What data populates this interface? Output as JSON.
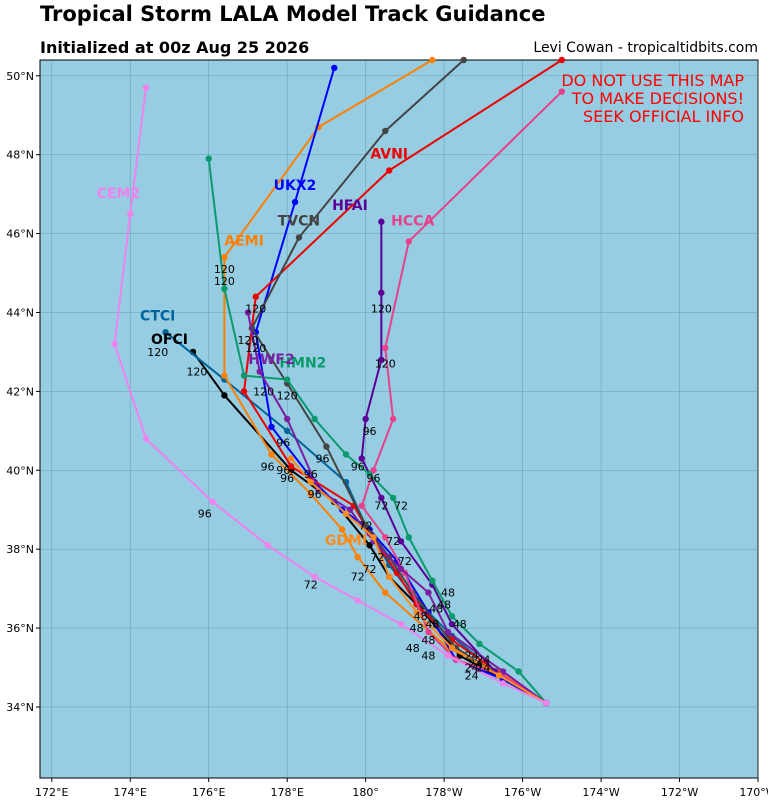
{
  "header": {
    "title": "Tropical Storm LALA Model Track Guidance",
    "subtitle": "Initialized at 00z Aug 25 2026",
    "credit": "Levi Cowan - tropicaltidbits.com"
  },
  "warning": {
    "line1": "DO NOT USE THIS MAP",
    "line2": "TO MAKE DECISIONS!",
    "line3": "SEEK OFFICIAL INFO"
  },
  "axes": {
    "x_ticks": [
      "172°E",
      "174°E",
      "176°E",
      "178°E",
      "180°",
      "178°W",
      "176°W",
      "174°W",
      "172°W",
      "170°W"
    ],
    "y_ticks": [
      "34°N",
      "36°N",
      "38°N",
      "40°N",
      "42°N",
      "44°N",
      "46°N",
      "48°N",
      "50°N"
    ]
  },
  "colors": {
    "ocean": "#96cde3",
    "grid": "#4a7f8f"
  },
  "chart_data": {
    "type": "map",
    "lon_range": [
      171.7,
      190.0
    ],
    "lat_range": [
      32.2,
      50.4
    ],
    "models": [
      {
        "name": "OFCI",
        "color": "#000000",
        "label_pos": [
          175.0,
          43.2
        ],
        "track": [
          [
            184.6,
            34.1
          ],
          [
            183.5,
            34.7
          ],
          [
            182.4,
            35.3
          ],
          [
            181.4,
            36.5
          ],
          [
            180.6,
            37.3
          ],
          [
            180.1,
            38.1
          ],
          [
            179.2,
            39.2
          ],
          [
            178.1,
            40.0
          ],
          [
            176.4,
            41.9
          ],
          [
            175.6,
            43.0
          ]
        ]
      },
      {
        "name": "CTCI",
        "color": "#00659b",
        "label_pos": [
          174.7,
          43.8
        ],
        "track": [
          [
            184.6,
            34.1
          ],
          [
            183.4,
            34.8
          ],
          [
            182.2,
            35.8
          ],
          [
            181.3,
            36.7
          ],
          [
            180.6,
            37.6
          ],
          [
            180.0,
            38.6
          ],
          [
            179.5,
            39.7
          ],
          [
            178.0,
            41.0
          ],
          [
            176.4,
            42.3
          ],
          [
            174.9,
            43.5
          ]
        ]
      },
      {
        "name": "AEMI",
        "color": "#ff8000",
        "label_pos": [
          176.9,
          45.7
        ],
        "track": [
          [
            184.6,
            34.1
          ],
          [
            183.4,
            34.9
          ],
          [
            182.1,
            35.5
          ],
          [
            180.5,
            36.9
          ],
          [
            179.8,
            37.8
          ],
          [
            179.4,
            38.5
          ],
          [
            178.6,
            39.4
          ],
          [
            177.6,
            40.4
          ],
          [
            176.4,
            42.4
          ],
          [
            176.4,
            45.4
          ],
          [
            178.8,
            48.7
          ],
          [
            181.7,
            50.4
          ]
        ]
      },
      {
        "name": "UKX2",
        "color": "#0000ff",
        "label_pos": [
          178.2,
          47.1
        ],
        "track": [
          [
            184.6,
            34.1
          ],
          [
            183.5,
            34.7
          ],
          [
            182.3,
            35.2
          ],
          [
            181.6,
            36.4
          ],
          [
            180.8,
            37.7
          ],
          [
            180.1,
            38.5
          ],
          [
            179.4,
            39.0
          ],
          [
            178.7,
            39.7
          ],
          [
            177.6,
            41.1
          ],
          [
            177.2,
            43.5
          ],
          [
            178.2,
            46.8
          ],
          [
            179.2,
            50.2
          ]
        ]
      },
      {
        "name": "AVNI",
        "color": "#ee0000",
        "label_pos": [
          180.6,
          47.9
        ],
        "track": [
          [
            184.6,
            34.1
          ],
          [
            183.5,
            34.8
          ],
          [
            182.2,
            35.7
          ],
          [
            181.3,
            36.6
          ],
          [
            180.8,
            37.4
          ],
          [
            180.1,
            38.4
          ],
          [
            179.7,
            39.1
          ],
          [
            178.1,
            40.1
          ],
          [
            176.9,
            42.0
          ],
          [
            177.2,
            44.4
          ],
          [
            180.6,
            47.6
          ],
          [
            185.0,
            50.4
          ]
        ]
      },
      {
        "name": "TVCN",
        "color": "#444444",
        "label_pos": [
          178.3,
          46.2
        ],
        "track": [
          [
            184.6,
            34.1
          ],
          [
            183.4,
            34.8
          ],
          [
            182.3,
            35.5
          ],
          [
            181.2,
            36.9
          ],
          [
            180.6,
            37.8
          ],
          [
            180.0,
            38.6
          ],
          [
            179.0,
            40.6
          ],
          [
            178.0,
            42.2
          ],
          [
            177.1,
            43.6
          ],
          [
            178.3,
            45.9
          ],
          [
            180.5,
            48.6
          ],
          [
            182.5,
            50.4
          ]
        ]
      },
      {
        "name": "HFAI",
        "color": "#5a0096",
        "label_pos": [
          179.6,
          46.6
        ],
        "track": [
          [
            184.6,
            34.1
          ],
          [
            183.3,
            34.9
          ],
          [
            182.2,
            36.1
          ],
          [
            181.7,
            37.1
          ],
          [
            180.9,
            38.2
          ],
          [
            180.4,
            39.3
          ],
          [
            179.9,
            40.3
          ],
          [
            180.0,
            41.3
          ],
          [
            180.4,
            42.8
          ],
          [
            180.4,
            44.5
          ],
          [
            180.4,
            46.3
          ]
        ]
      },
      {
        "name": "HCCA",
        "color": "#e8418b",
        "label_pos": [
          181.2,
          46.2
        ],
        "track": [
          [
            184.6,
            34.1
          ],
          [
            183.5,
            34.8
          ],
          [
            182.3,
            35.2
          ],
          [
            181.6,
            35.9
          ],
          [
            181.0,
            37.4
          ],
          [
            180.5,
            38.3
          ],
          [
            179.9,
            39.1
          ],
          [
            180.2,
            40.0
          ],
          [
            180.7,
            41.3
          ],
          [
            180.5,
            43.1
          ],
          [
            181.1,
            45.8
          ],
          [
            185.0,
            49.6
          ]
        ]
      },
      {
        "name": "HMN2",
        "color": "#0a9a6c",
        "label_pos": [
          178.4,
          42.6
        ],
        "track": [
          [
            184.6,
            34.1
          ],
          [
            183.9,
            34.9
          ],
          [
            182.9,
            35.6
          ],
          [
            182.2,
            36.3
          ],
          [
            181.7,
            37.2
          ],
          [
            181.1,
            38.3
          ],
          [
            180.7,
            39.3
          ],
          [
            180.1,
            39.9
          ],
          [
            179.5,
            40.4
          ],
          [
            178.7,
            41.3
          ],
          [
            178.0,
            42.3
          ],
          [
            176.9,
            42.4
          ],
          [
            176.4,
            44.6
          ],
          [
            176.0,
            47.9
          ]
        ]
      },
      {
        "name": "HWF2",
        "color": "#7a1fa2",
        "label_pos": [
          177.6,
          42.7
        ],
        "track": [
          [
            184.6,
            34.1
          ],
          [
            183.5,
            34.9
          ],
          [
            182.1,
            35.9
          ],
          [
            181.6,
            36.9
          ],
          [
            180.9,
            37.5
          ],
          [
            180.2,
            38.2
          ],
          [
            179.6,
            39.0
          ],
          [
            178.8,
            39.5
          ],
          [
            178.0,
            41.3
          ],
          [
            177.3,
            42.5
          ],
          [
            177.0,
            44.0
          ]
        ]
      },
      {
        "name": "GDMI",
        "color": "#ff8c1a",
        "label_pos": [
          179.5,
          38.1
        ],
        "track": [
          [
            184.6,
            34.1
          ],
          [
            183.4,
            34.8
          ],
          [
            182.2,
            35.5
          ],
          [
            181.3,
            36.4
          ],
          [
            180.6,
            37.3
          ],
          [
            180.2,
            38.3
          ],
          [
            179.5,
            38.9
          ],
          [
            178.6,
            39.7
          ],
          [
            178.1,
            40.3
          ]
        ]
      },
      {
        "name": "CEM2",
        "color": "#ee82ee",
        "label_pos": [
          173.7,
          46.9
        ],
        "track": [
          [
            184.6,
            34.1
          ],
          [
            183.5,
            34.6
          ],
          [
            182.1,
            35.3
          ],
          [
            180.9,
            36.1
          ],
          [
            179.8,
            36.7
          ],
          [
            178.7,
            37.3
          ],
          [
            177.5,
            38.1
          ],
          [
            176.1,
            39.2
          ],
          [
            174.4,
            40.8
          ],
          [
            173.6,
            43.2
          ],
          [
            174.0,
            46.5
          ],
          [
            174.4,
            49.7
          ]
        ]
      }
    ],
    "hour_labels": [
      {
        "text": "120",
        "pos": [
          176.4,
          45.0
        ]
      },
      {
        "text": "120",
        "pos": [
          176.4,
          44.7
        ]
      },
      {
        "text": "120",
        "pos": [
          177.2,
          44.0
        ]
      },
      {
        "text": "120",
        "pos": [
          177.0,
          43.2
        ]
      },
      {
        "text": "120",
        "pos": [
          177.2,
          43.0
        ]
      },
      {
        "text": "120",
        "pos": [
          180.4,
          44.0
        ]
      },
      {
        "text": "120",
        "pos": [
          174.7,
          42.9
        ]
      },
      {
        "text": "120",
        "pos": [
          175.7,
          42.4
        ]
      },
      {
        "text": "120",
        "pos": [
          180.5,
          42.6
        ]
      },
      {
        "text": "120",
        "pos": [
          177.4,
          41.9
        ]
      },
      {
        "text": "120",
        "pos": [
          178.0,
          41.8
        ]
      },
      {
        "text": "96",
        "pos": [
          180.1,
          40.9
        ]
      },
      {
        "text": "96",
        "pos": [
          177.9,
          40.6
        ]
      },
      {
        "text": "96",
        "pos": [
          177.5,
          40.0
        ]
      },
      {
        "text": "96",
        "pos": [
          177.9,
          39.9
        ]
      },
      {
        "text": "96",
        "pos": [
          178.9,
          40.2
        ]
      },
      {
        "text": "96",
        "pos": [
          179.8,
          40.0
        ]
      },
      {
        "text": "96",
        "pos": [
          180.2,
          39.7
        ]
      },
      {
        "text": "96",
        "pos": [
          178.0,
          39.7
        ]
      },
      {
        "text": "96",
        "pos": [
          178.6,
          39.8
        ]
      },
      {
        "text": "96",
        "pos": [
          178.7,
          39.3
        ]
      },
      {
        "text": "96",
        "pos": [
          175.9,
          38.8
        ]
      },
      {
        "text": "72",
        "pos": [
          180.4,
          39.0
        ]
      },
      {
        "text": "72",
        "pos": [
          180.9,
          39.0
        ]
      },
      {
        "text": "72",
        "pos": [
          180.0,
          38.5
        ]
      },
      {
        "text": "72",
        "pos": [
          180.7,
          38.1
        ]
      },
      {
        "text": "72",
        "pos": [
          180.3,
          37.7
        ]
      },
      {
        "text": "72",
        "pos": [
          181.0,
          37.6
        ]
      },
      {
        "text": "72",
        "pos": [
          180.1,
          37.4
        ]
      },
      {
        "text": "72",
        "pos": [
          178.6,
          37.0
        ]
      },
      {
        "text": "72",
        "pos": [
          179.8,
          37.2
        ]
      },
      {
        "text": "48",
        "pos": [
          182.1,
          36.8
        ]
      },
      {
        "text": "48",
        "pos": [
          182.4,
          36.0
        ]
      },
      {
        "text": "48",
        "pos": [
          182.0,
          36.5
        ]
      },
      {
        "text": "48",
        "pos": [
          181.4,
          36.2
        ]
      },
      {
        "text": "48",
        "pos": [
          181.6,
          35.6
        ]
      },
      {
        "text": "48",
        "pos": [
          181.7,
          36.0
        ]
      },
      {
        "text": "48",
        "pos": [
          181.8,
          36.4
        ]
      },
      {
        "text": "48",
        "pos": [
          181.3,
          35.9
        ]
      },
      {
        "text": "48",
        "pos": [
          181.2,
          35.4
        ]
      },
      {
        "text": "48",
        "pos": [
          181.6,
          35.2
        ]
      },
      {
        "text": "24",
        "pos": [
          182.7,
          35.2
        ]
      },
      {
        "text": "24",
        "pos": [
          182.8,
          35.0
        ]
      },
      {
        "text": "24",
        "pos": [
          183.0,
          35.1
        ]
      },
      {
        "text": "24",
        "pos": [
          183.0,
          34.9
        ]
      },
      {
        "text": "24",
        "pos": [
          182.7,
          34.7
        ]
      },
      {
        "text": "24",
        "pos": [
          182.7,
          34.9
        ]
      }
    ]
  }
}
